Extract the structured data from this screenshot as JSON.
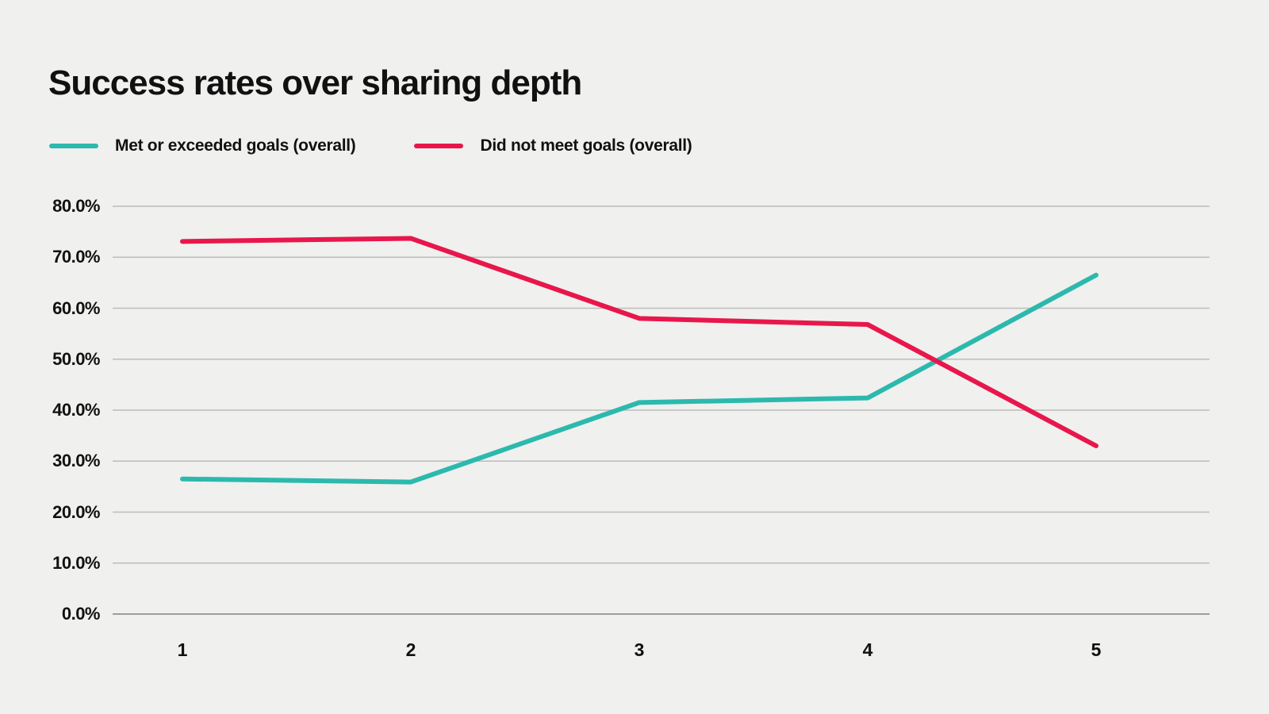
{
  "title": "Success rates over sharing depth",
  "colors": {
    "background": "#f0f0ef",
    "gridline": "#bcbcbc",
    "axis_line": "#9d9d9d",
    "text": "#111111",
    "series_met": "#2cb9ad",
    "series_not_met": "#e8174b"
  },
  "legend": {
    "items": [
      {
        "label": "Met or exceeded goals (overall)",
        "color": "#2cb9ad"
      },
      {
        "label": "Did not meet goals (overall)",
        "color": "#e8174b"
      }
    ]
  },
  "chart_data": {
    "type": "line",
    "title": "Success rates over sharing depth",
    "categories": [
      "1",
      "2",
      "3",
      "4",
      "5"
    ],
    "series": [
      {
        "name": "Met or exceeded goals (overall)",
        "color": "#2cb9ad",
        "values": [
          26.5,
          25.9,
          41.5,
          42.4,
          66.5
        ]
      },
      {
        "name": "Did not meet goals (overall)",
        "color": "#e8174b",
        "values": [
          73.1,
          73.7,
          58.0,
          56.8,
          33.0
        ]
      }
    ],
    "xlabel": "",
    "ylabel": "",
    "ylim": [
      0,
      80
    ],
    "ytick_values": [
      80,
      70,
      60,
      50,
      40,
      30,
      20,
      10,
      0
    ],
    "ytick_labels": [
      "80.0%",
      "70.0%",
      "60.0%",
      "50.0%",
      "40.0%",
      "30.0%",
      "20.0%",
      "10.0%",
      "0.0%"
    ],
    "grid": true,
    "legend_position": "top-left"
  }
}
